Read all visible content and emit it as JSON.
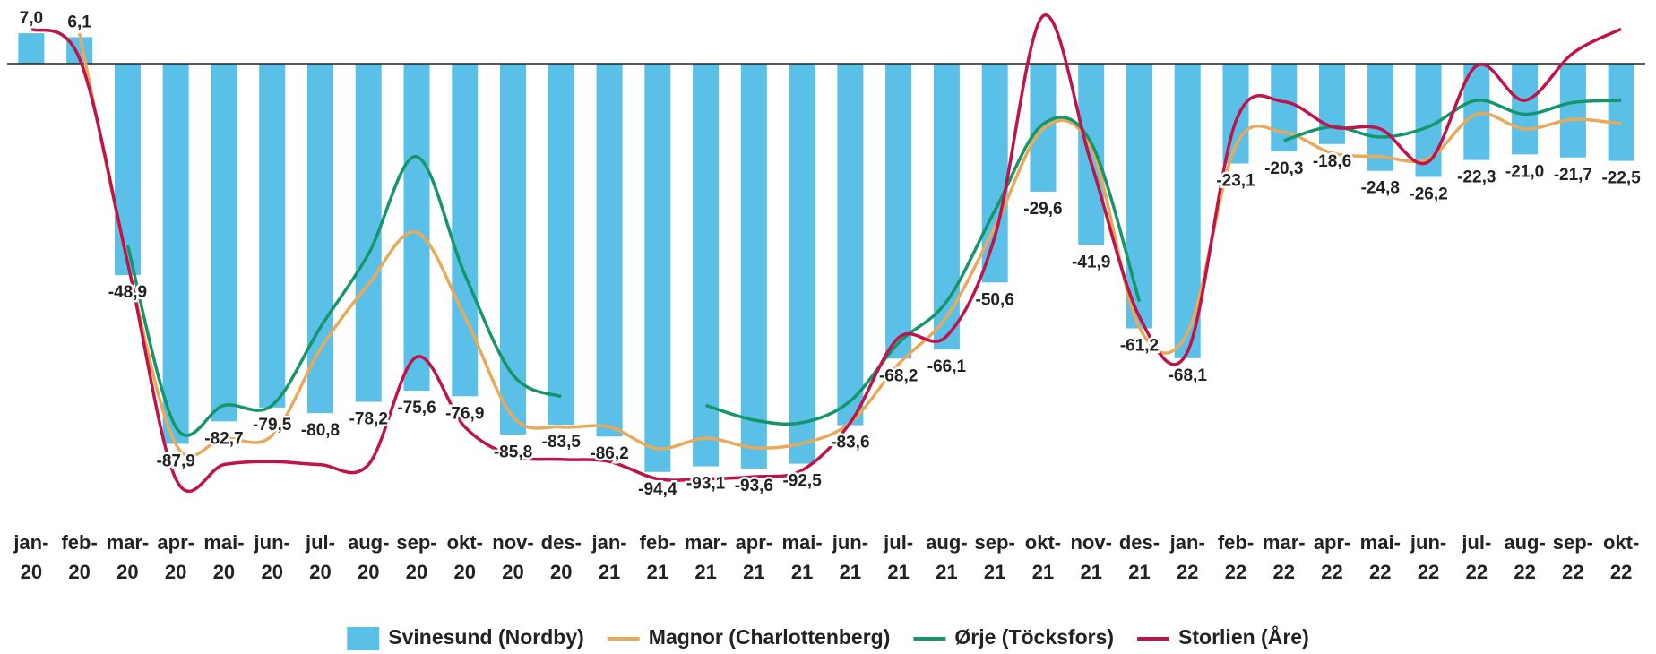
{
  "chart_data": {
    "type": "bar-line",
    "categories": [
      "jan-20",
      "feb-20",
      "mar-20",
      "apr-20",
      "mai-20",
      "jun-20",
      "jul-20",
      "aug-20",
      "sep-20",
      "okt-20",
      "nov-20",
      "des-20",
      "jan-21",
      "feb-21",
      "mar-21",
      "apr-21",
      "mai-21",
      "jun-21",
      "jul-21",
      "aug-21",
      "sep-21",
      "okt-21",
      "nov-21",
      "des-21",
      "jan-22",
      "feb-22",
      "mar-22",
      "apr-22",
      "mai-22",
      "jun-22",
      "jul-22",
      "aug-22",
      "sep-22",
      "okt-22"
    ],
    "series": [
      {
        "name": "Svinesund (Nordby)",
        "type": "bar",
        "color": "#5bc0e8",
        "values": [
          7.0,
          6.1,
          -48.9,
          -87.9,
          -82.7,
          -79.5,
          -80.8,
          -78.2,
          -75.6,
          -76.9,
          -85.8,
          -83.5,
          -86.2,
          -94.4,
          -93.1,
          -93.6,
          -92.5,
          -83.6,
          -68.2,
          -66.1,
          -50.6,
          -29.6,
          -41.9,
          -61.2,
          -68.1,
          -23.1,
          -20.3,
          -18.6,
          -24.8,
          -26.2,
          -22.3,
          -21.0,
          -21.7,
          -22.5
        ],
        "value_labels": [
          "7,0",
          "6,1",
          "-48,9",
          "-87,9",
          "-82,7",
          "-79,5",
          "-80,8",
          "-78,2",
          "-75,6",
          "-76,9",
          "-85,8",
          "-83,5",
          "-86,2",
          "-94,4",
          "-93,1",
          "-93,6",
          "-92,5",
          "-83,6",
          "-68,2",
          "-66,1",
          "-50,6",
          "-29,6",
          "-41,9",
          "-61,2",
          "-68,1",
          "-23,1",
          "-20,3",
          "-18,6",
          "-24,8",
          "-26,2",
          "-22,3",
          "-21,0",
          "-21,7",
          "-22,5"
        ]
      },
      {
        "name": "Magnor (Charlottenberg)",
        "type": "line",
        "color": "#e8a95a",
        "values": [
          null,
          7,
          -46,
          -88,
          -86.6,
          -86,
          -66,
          -51,
          -39,
          -58.5,
          -81.7,
          -84,
          -84,
          -89,
          -86.6,
          -88.8,
          -87.8,
          -83,
          -69.5,
          -58.5,
          -37.8,
          -15.1,
          -19.5,
          -61,
          -62.2,
          -19,
          -15.9,
          -20.7,
          -21.5,
          -22,
          -11.7,
          -15.1,
          -12.9,
          -13.9
        ]
      },
      {
        "name": "Ørje (Töcksfors)",
        "type": "line",
        "color": "#16956b",
        "values": [
          null,
          null,
          -42,
          -84,
          -79,
          -79,
          -61,
          -44,
          -21.5,
          -48.8,
          -72,
          -77,
          null,
          null,
          -79,
          -82.4,
          -83,
          -78,
          -64.6,
          -55,
          -34,
          -14,
          -18.3,
          -55,
          null,
          null,
          -17.8,
          -14.6,
          -17,
          -14.6,
          -8.5,
          -11.7,
          -9,
          -8.5
        ]
      },
      {
        "name": "Storlien (Åre)",
        "type": "line",
        "color": "#c0134a",
        "values": [
          8,
          1.2,
          -46,
          -96,
          -92.7,
          -92,
          -92.7,
          -92.7,
          -67.8,
          -84,
          -90.7,
          -91.5,
          -92,
          -96,
          -96,
          -95.5,
          -94,
          -83,
          -63.4,
          -63,
          -40,
          11,
          -23,
          -58.5,
          -66.6,
          -13.4,
          -8.8,
          -14.6,
          -15.1,
          -22.7,
          -0.5,
          -8.5,
          2.4,
          8
        ]
      }
    ],
    "ylim": [
      -105,
      12
    ],
    "legend": "bottom"
  }
}
